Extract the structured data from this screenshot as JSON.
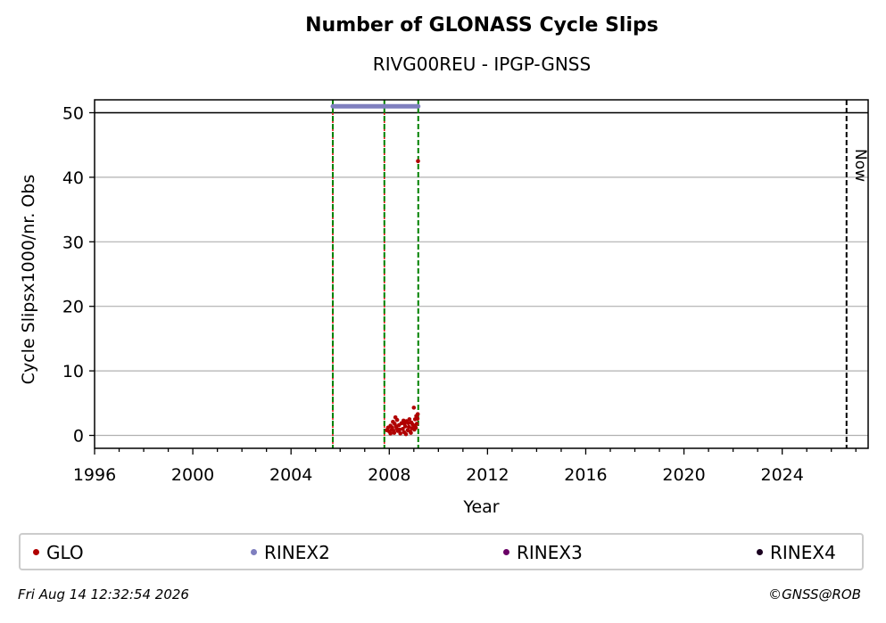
{
  "chart_data": {
    "type": "scatter",
    "title": "Number of GLONASS Cycle Slips",
    "subtitle": "RIVG00REU - IPGP-GNSS",
    "xlabel": "Year",
    "ylabel": "Cycle Slipsx1000/nr. Obs",
    "xlim": [
      1996,
      2027.5
    ],
    "ylim": [
      -2,
      52
    ],
    "xticks": [
      1996,
      2000,
      2004,
      2008,
      2012,
      2016,
      2020,
      2024
    ],
    "yticks": [
      0,
      10,
      20,
      30,
      40,
      50
    ],
    "grid": "horizontal",
    "legend_position": "bottom",
    "now_label": "Now",
    "now_x": 2026.62,
    "threshold_line_y": 50,
    "event_lines": [
      {
        "x": 2005.7,
        "style": "green-red-dashed"
      },
      {
        "x": 2007.8,
        "style": "green-red-dashed"
      },
      {
        "x": 2009.18,
        "style": "green-dashed"
      }
    ],
    "series": [
      {
        "name": "GLO",
        "color": "#b00000",
        "points": [
          [
            2007.9,
            0.8
          ],
          [
            2007.95,
            1.2
          ],
          [
            2008.0,
            0.6
          ],
          [
            2008.05,
            1.5
          ],
          [
            2008.1,
            0.9
          ],
          [
            2008.15,
            2.1
          ],
          [
            2008.2,
            0.4
          ],
          [
            2008.22,
            1.8
          ],
          [
            2008.25,
            2.8
          ],
          [
            2008.3,
            1.1
          ],
          [
            2008.35,
            0.7
          ],
          [
            2008.4,
            1.6
          ],
          [
            2008.45,
            0.3
          ],
          [
            2008.5,
            1.9
          ],
          [
            2008.55,
            1.0
          ],
          [
            2008.6,
            0.5
          ],
          [
            2008.65,
            1.4
          ],
          [
            2008.7,
            2.2
          ],
          [
            2008.75,
            0.8
          ],
          [
            2008.8,
            1.3
          ],
          [
            2008.85,
            0.6
          ],
          [
            2008.9,
            2.0
          ],
          [
            2008.95,
            1.7
          ],
          [
            2009.0,
            4.3
          ],
          [
            2009.02,
            0.9
          ],
          [
            2009.05,
            2.5
          ],
          [
            2009.08,
            1.2
          ],
          [
            2009.1,
            3.0
          ],
          [
            2009.12,
            1.8
          ],
          [
            2009.15,
            2.6
          ],
          [
            2009.16,
            3.3
          ],
          [
            2009.17,
            42.5
          ],
          [
            2008.05,
            0.3
          ],
          [
            2008.32,
            2.4
          ],
          [
            2008.58,
            2.3
          ],
          [
            2008.78,
            1.9
          ],
          [
            2008.88,
            0.4
          ],
          [
            2009.03,
            1.5
          ],
          [
            2008.12,
            1.2
          ],
          [
            2008.42,
            0.9
          ],
          [
            2008.68,
            0.2
          ],
          [
            2008.92,
            1.1
          ],
          [
            2008.18,
            0.7
          ],
          [
            2008.62,
            1.8
          ],
          [
            2008.28,
            1.4
          ],
          [
            2008.82,
            2.5
          ]
        ]
      },
      {
        "name": "RINEX2",
        "color": "#7f7fbf",
        "x_range": [
          2005.7,
          2009.18
        ],
        "y": 51
      },
      {
        "name": "RINEX3",
        "color": "#6a0066",
        "points": []
      },
      {
        "name": "RINEX4",
        "color": "#1a0020",
        "points": []
      }
    ]
  },
  "footer": {
    "timestamp": "Fri Aug 14 12:32:54 2026",
    "copyright": "©GNSS@ROB"
  }
}
